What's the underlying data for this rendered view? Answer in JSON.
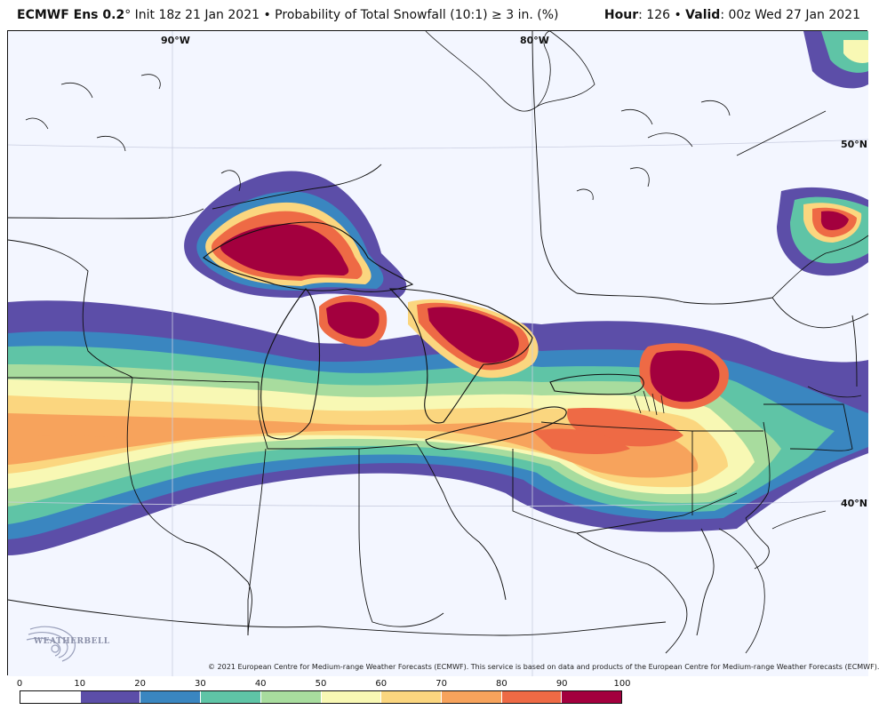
{
  "header": {
    "model": "ECMWF Ens 0.2",
    "degree": "°",
    "init": " Init 18z 21 Jan 2021 ",
    "product": "• Probability of Total Snowfall (10:1) ≥ 3 in. (%)",
    "hour_label": "Hour",
    "hour_value": ": 126 • ",
    "valid_label": "Valid",
    "valid_value": ": 00z Wed 27 Jan 2021"
  },
  "graticule": {
    "lon_90": "90°W",
    "lon_80": "80°W",
    "lat_50": "50°N",
    "lat_40": "40°N"
  },
  "copyright": "© 2021 European Centre for Medium-range Weather Forecasts (ECMWF). This service is based on data and products of the European Centre for Medium-range Weather Forecasts (ECMWF).",
  "logo": {
    "text": "WEATHERBELL"
  },
  "legend": {
    "ticks": [
      "0",
      "10",
      "20",
      "30",
      "40",
      "50",
      "60",
      "70",
      "80",
      "90",
      "100"
    ],
    "colors": [
      "#ffffff",
      "#5c4ea8",
      "#3a86c0",
      "#5fc4a6",
      "#a8dc9e",
      "#f8f8b4",
      "#fbd67f",
      "#f7a35c",
      "#ee6a45",
      "#a3003e"
    ]
  }
}
